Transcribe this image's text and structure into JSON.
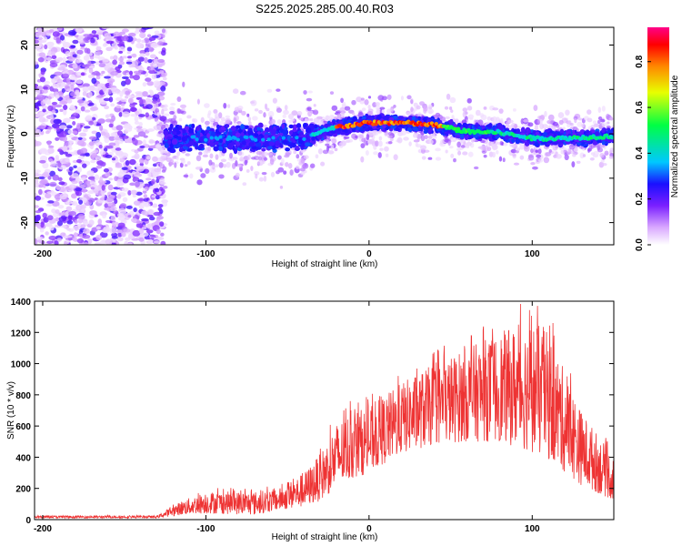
{
  "title": "S225.2025.285.00.40.R03",
  "chart_data": [
    {
      "type": "heatmap",
      "xlabel": "Height of straight line (km)",
      "ylabel": "Frequency (Hz)",
      "xlim": [
        -205,
        150
      ],
      "ylim": [
        -25,
        24
      ],
      "xticks": [
        -200,
        -100,
        0,
        100
      ],
      "yticks": [
        -20,
        -10,
        0,
        10,
        20
      ],
      "colorbar": {
        "label": "Normalized spectral amplitude",
        "range": [
          0,
          0.95
        ],
        "ticks": [
          0.0,
          0.2,
          0.4,
          0.6,
          0.8
        ]
      },
      "ridge": {
        "description_points_x": [
          -120,
          -40,
          -20,
          0,
          20,
          40,
          60,
          80,
          100,
          120,
          150
        ],
        "description_points_freq": [
          -1,
          -1,
          1.5,
          2.5,
          2.5,
          2.0,
          0.5,
          0.3,
          -1,
          -1,
          -0.5
        ]
      }
    },
    {
      "type": "line",
      "xlabel": "Height of straight line (km)",
      "ylabel": "SNR (10 * v/v)",
      "xlim": [
        -205,
        150
      ],
      "ylim": [
        0,
        1400
      ],
      "xticks": [
        -200,
        -100,
        0,
        100
      ],
      "yticks": [
        0,
        200,
        400,
        600,
        800,
        1000,
        1200,
        1400
      ],
      "color": "#ee3333",
      "envelope": {
        "x": [
          -205,
          -130,
          -115,
          -100,
          -70,
          -55,
          -40,
          -30,
          -20,
          -10,
          0,
          20,
          40,
          60,
          80,
          100,
          110,
          120,
          130,
          150
        ],
        "low": [
          10,
          10,
          30,
          40,
          30,
          60,
          80,
          120,
          200,
          260,
          300,
          420,
          480,
          500,
          500,
          430,
          380,
          300,
          220,
          120
        ],
        "high": [
          25,
          25,
          120,
          180,
          180,
          200,
          300,
          420,
          620,
          700,
          720,
          880,
          1000,
          1100,
          1200,
          1280,
          1200,
          950,
          700,
          400
        ]
      }
    }
  ]
}
